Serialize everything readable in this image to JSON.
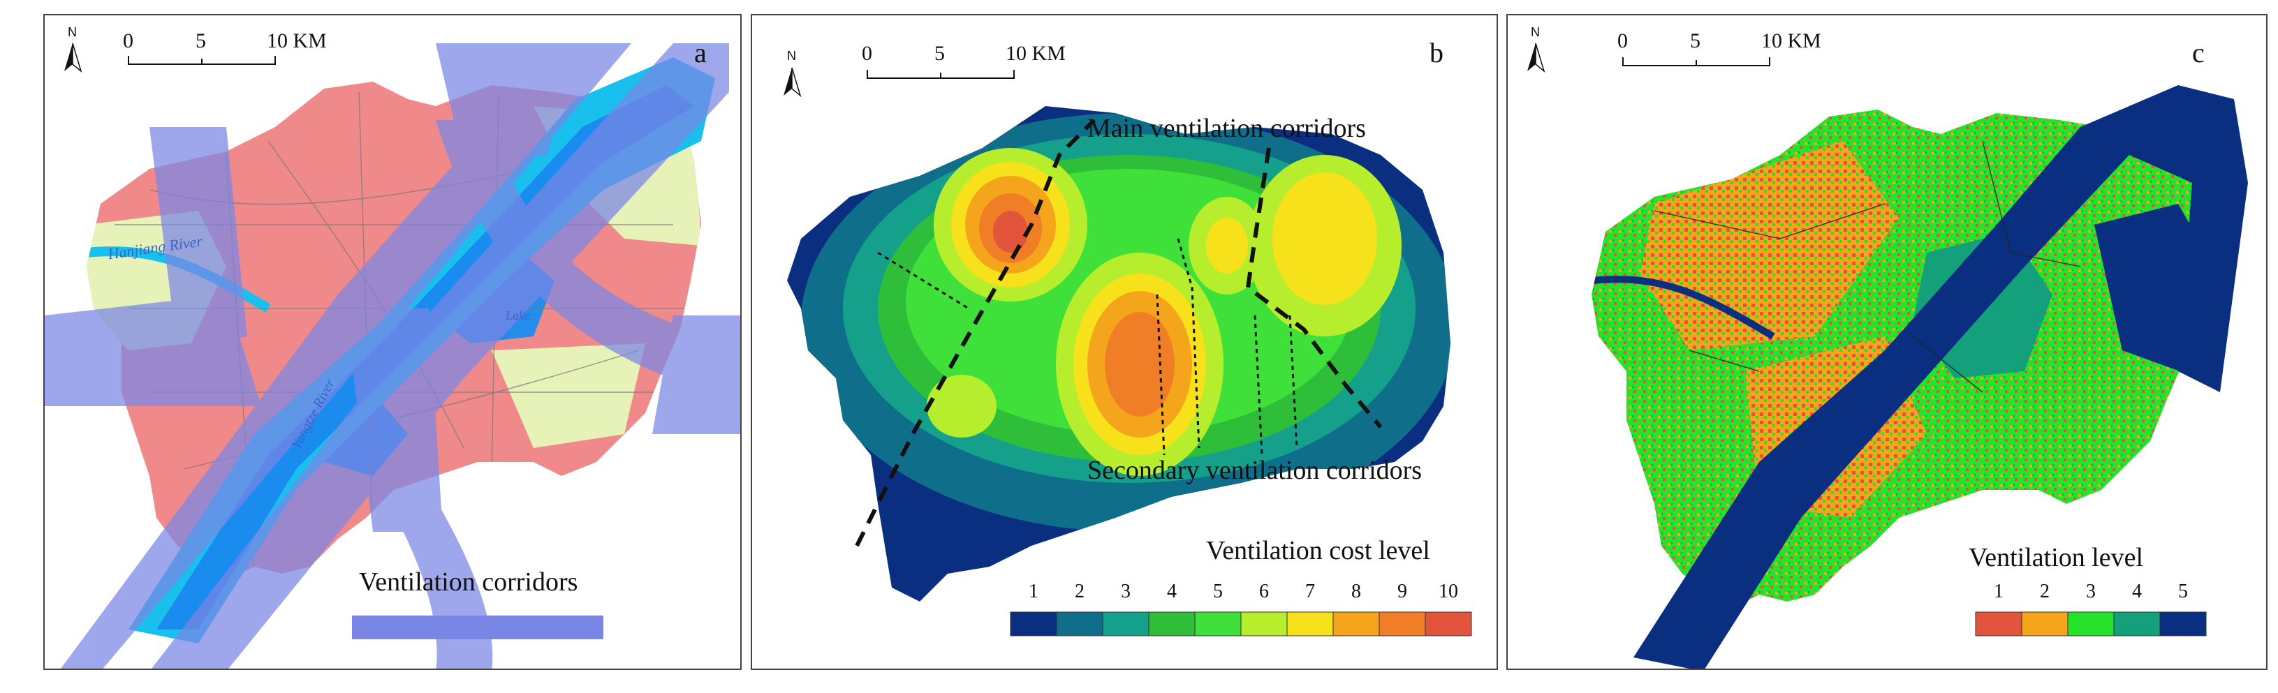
{
  "scale_bar": {
    "ticks": [
      "0",
      "5",
      "10 KM"
    ]
  },
  "north_arrow": {
    "label": "N"
  },
  "panels": [
    {
      "letter": "a",
      "labels": {
        "corridors_legend": "Ventilation corridors",
        "river_hanjiang": "Hanjiang River",
        "river_yangtze": "Yangtze River",
        "lake": "Lake"
      },
      "colors": {
        "corridor": "#7a86e6",
        "urban": "#f08a8a",
        "green": "#e7f2b8",
        "water": "#1a8cf0",
        "light_water": "#19c0ee",
        "overlap": "#8a60c0"
      }
    },
    {
      "letter": "b",
      "labels": {
        "main": "Main ventilation corridors",
        "secondary": "Secondary ventilation corridors",
        "legend_title": "Ventilation cost level"
      },
      "legend": {
        "levels": [
          "1",
          "2",
          "3",
          "4",
          "5",
          "6",
          "7",
          "8",
          "9",
          "10"
        ],
        "colors": [
          "#0b2f80",
          "#0f6e8a",
          "#14a08a",
          "#2fbe3a",
          "#3fe03a",
          "#b6ee2e",
          "#f7e11a",
          "#f5a51b",
          "#ef7e27",
          "#e2553c"
        ]
      }
    },
    {
      "letter": "c",
      "labels": {
        "legend_title": "Ventilation level"
      },
      "legend": {
        "levels": [
          "1",
          "2",
          "3",
          "4",
          "5"
        ],
        "colors": [
          "#e2553c",
          "#f5a51b",
          "#25e22a",
          "#14a07a",
          "#0b2f80"
        ]
      }
    }
  ]
}
